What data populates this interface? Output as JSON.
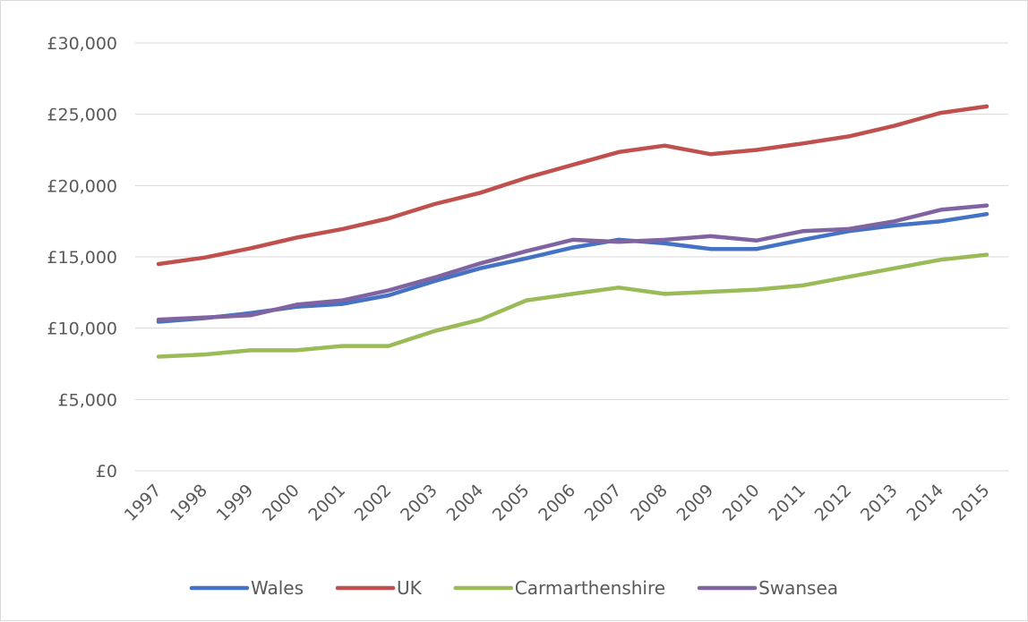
{
  "chart_data": {
    "type": "line",
    "title": "",
    "xlabel": "",
    "ylabel": "",
    "categories": [
      "1997",
      "1998",
      "1999",
      "2000",
      "2001",
      "2002",
      "2003",
      "2004",
      "2005",
      "2006",
      "2007",
      "2008",
      "2009",
      "2010",
      "2011",
      "2012",
      "2013",
      "2014",
      "2015"
    ],
    "ylim": [
      0,
      30000
    ],
    "y_ticks": [
      0,
      5000,
      10000,
      15000,
      20000,
      25000,
      30000
    ],
    "y_tick_labels": [
      "£0",
      "£5,000",
      "£10,000",
      "£15,000",
      "£20,000",
      "£25,000",
      "£30,000"
    ],
    "grid": true,
    "legend_position": "bottom",
    "series": [
      {
        "name": "Wales",
        "color": "#4472c4",
        "values": [
          10450,
          10700,
          11050,
          11500,
          11700,
          12300,
          13300,
          14200,
          14900,
          15650,
          16200,
          15950,
          15550,
          15550,
          16200,
          16800,
          17200,
          17500,
          18000
        ]
      },
      {
        "name": "UK",
        "color": "#c0504d",
        "values": [
          14500,
          14950,
          15600,
          16350,
          16950,
          17700,
          18700,
          19500,
          20550,
          21450,
          22350,
          22800,
          22200,
          22500,
          22950,
          23450,
          24200,
          25100,
          25550
        ]
      },
      {
        "name": "Carmarthenshire",
        "color": "#9bbb59",
        "values": [
          8000,
          8150,
          8450,
          8450,
          8750,
          8750,
          9800,
          10600,
          11950,
          12400,
          12850,
          12400,
          12550,
          12700,
          13000,
          13600,
          14200,
          14800,
          15150
        ]
      },
      {
        "name": "Swansea",
        "color": "#8064a2",
        "values": [
          10600,
          10750,
          10900,
          11650,
          11950,
          12650,
          13550,
          14550,
          15400,
          16200,
          16050,
          16200,
          16450,
          16150,
          16800,
          16950,
          17500,
          18300,
          18600
        ]
      }
    ]
  }
}
